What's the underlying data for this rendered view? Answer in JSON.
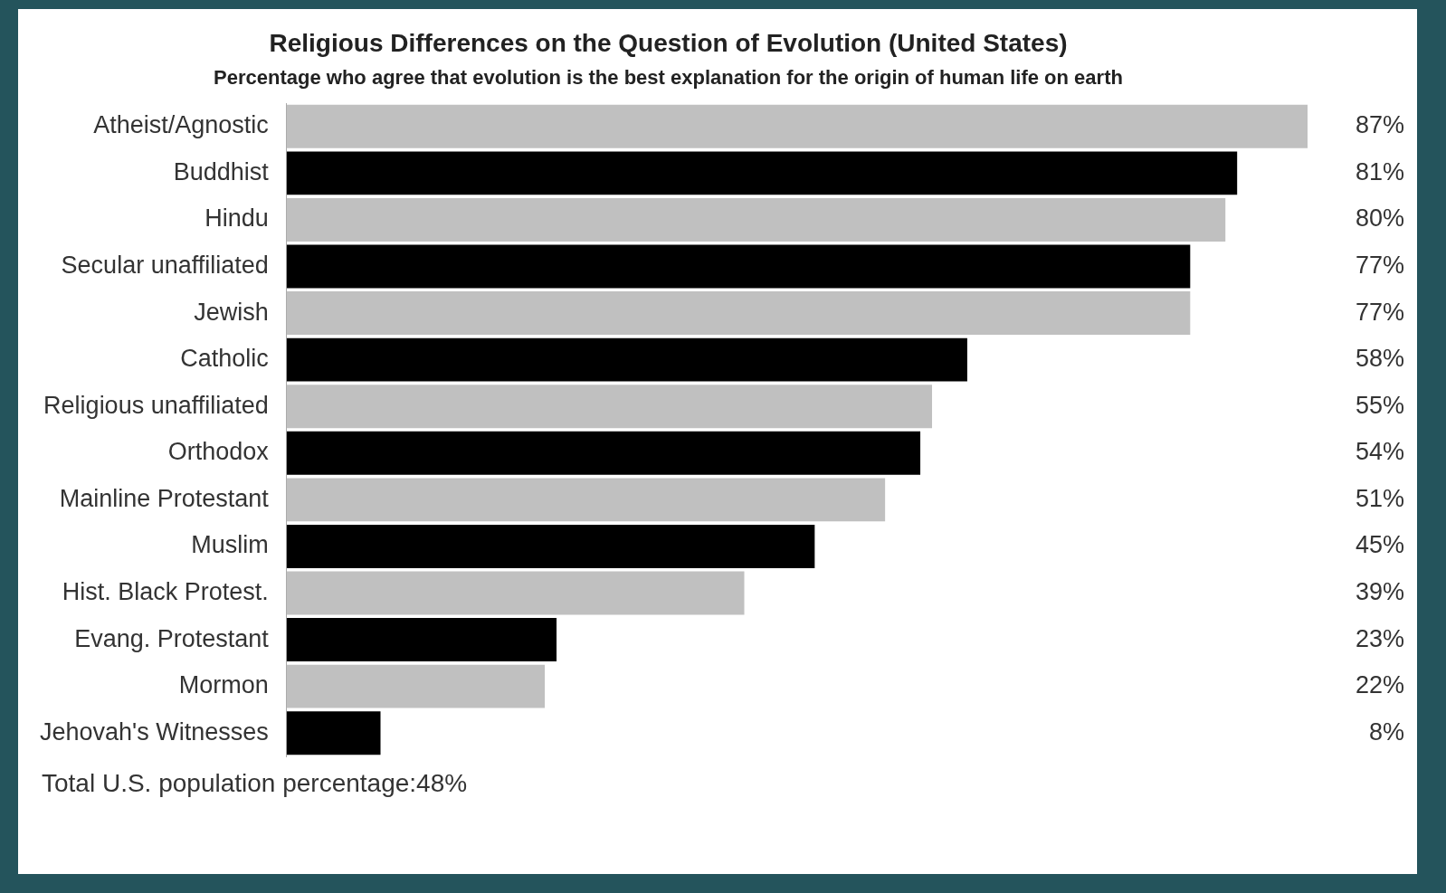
{
  "chart_data": {
    "type": "bar",
    "orientation": "horizontal",
    "title": "Religious Differences on the Question of Evolution (United States)",
    "subtitle": "Percentage who agree that evolution is the best explanation for the origin of human life on earth",
    "categories": [
      "Atheist/Agnostic",
      "Buddhist",
      "Hindu",
      "Secular unaffiliated",
      "Jewish",
      "Catholic",
      "Religious unaffiliated",
      "Orthodox",
      "Mainline Protestant",
      "Muslim",
      "Hist. Black Protest.",
      "Evang. Protestant",
      "Mormon",
      "Jehovah's Witnesses"
    ],
    "values": [
      87,
      81,
      80,
      77,
      77,
      58,
      55,
      54,
      51,
      45,
      39,
      23,
      22,
      8
    ],
    "colors": [
      "#c0c0c0",
      "#000000",
      "#c0c0c0",
      "#000000",
      "#c0c0c0",
      "#000000",
      "#c0c0c0",
      "#000000",
      "#c0c0c0",
      "#000000",
      "#c0c0c0",
      "#000000",
      "#c0c0c0",
      "#000000"
    ],
    "value_labels": [
      "87%",
      "81%",
      "80%",
      "77%",
      "77%",
      "58%",
      "55%",
      "54%",
      "51%",
      "45%",
      "39%",
      "23%",
      "22%",
      "8%"
    ],
    "annotations": [
      "Total U.S. population percentage:48%"
    ]
  }
}
